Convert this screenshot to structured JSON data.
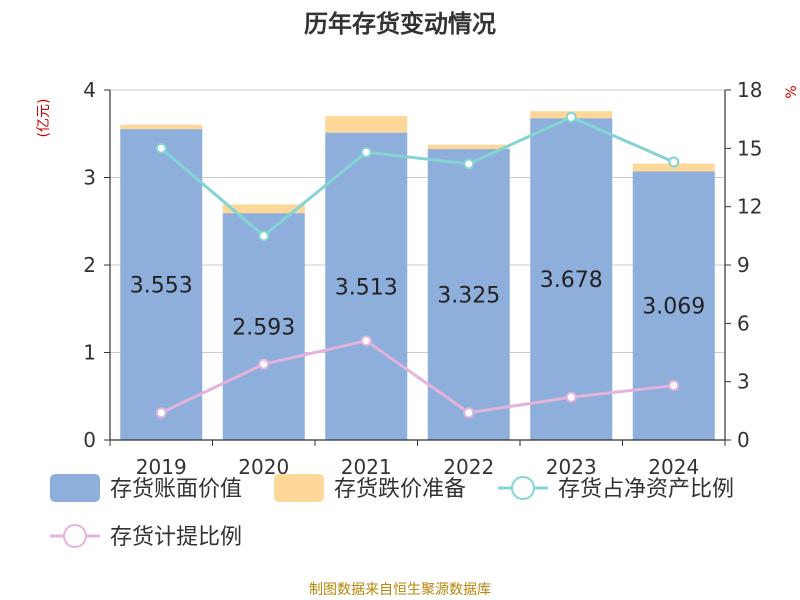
{
  "chart_data": {
    "type": "bar",
    "title": "历年存货变动情况",
    "categories": [
      "2019",
      "2020",
      "2021",
      "2022",
      "2023",
      "2024"
    ],
    "left_axis": {
      "label": "(亿元)",
      "range": [
        0,
        4
      ],
      "ticks": [
        "0",
        "1",
        "2",
        "3",
        "4"
      ]
    },
    "right_axis": {
      "label": "%",
      "range": [
        0,
        18
      ],
      "ticks": [
        "0",
        "3",
        "6",
        "9",
        "12",
        "15",
        "18"
      ]
    },
    "series": [
      {
        "name": "存货账面价值",
        "type": "bar",
        "stack": "total",
        "axis": "left",
        "values": [
          3.553,
          2.593,
          3.513,
          3.325,
          3.678,
          3.069
        ],
        "labels": [
          "3.553",
          "2.593",
          "3.513",
          "3.325",
          "3.678",
          "3.069"
        ]
      },
      {
        "name": "存货跌价准备",
        "type": "bar",
        "stack": "total",
        "axis": "left",
        "values": [
          0.05,
          0.1,
          0.19,
          0.05,
          0.08,
          0.09
        ]
      },
      {
        "name": "存货占净资产比例",
        "type": "line",
        "axis": "right",
        "values": [
          15.0,
          10.5,
          14.8,
          14.2,
          16.6,
          14.3
        ]
      },
      {
        "name": "存货计提比例",
        "type": "line",
        "axis": "right",
        "values": [
          1.4,
          3.9,
          5.1,
          1.4,
          2.2,
          2.8
        ]
      }
    ],
    "grid": true,
    "legend_position": "bottom",
    "source": "制图数据来自恒生聚源数据库",
    "colors": {
      "bar_main": "#8eaedb",
      "bar_reserve": "#fdd899",
      "line_ratio": "#84d4d4",
      "line_provision": "#e3b3dc",
      "title": "#333333",
      "axis_label": "#cc0000",
      "source": "#b8860b",
      "grid": "#cccccc",
      "axis": "#333333"
    }
  }
}
